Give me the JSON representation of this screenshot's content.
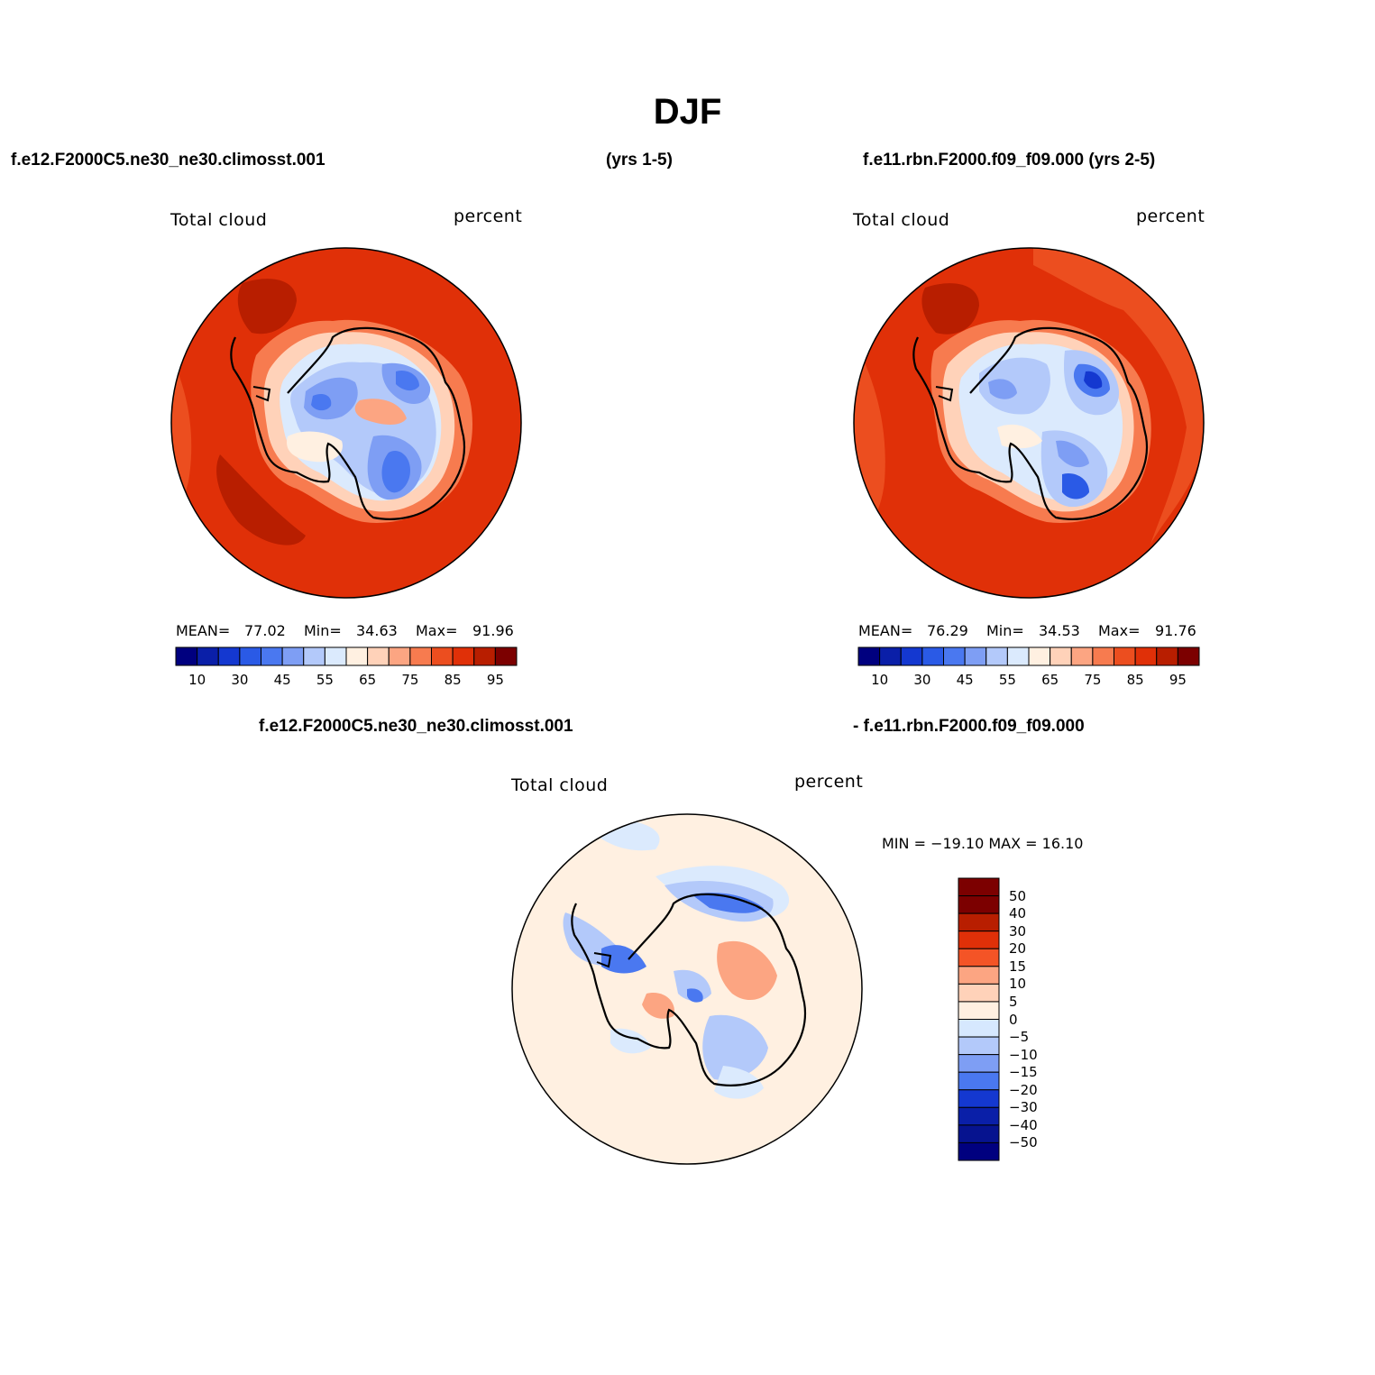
{
  "title": "DJF",
  "header": {
    "left": "f.e12.F2000C5.ne30_ne30.climosst.001",
    "middle": "(yrs 1-5)",
    "right": "f.e11.rbn.F2000.f09_f09.000 (yrs 2-5)"
  },
  "diff_header": {
    "left": "f.e12.F2000C5.ne30_ne30.climosst.001",
    "right": "- f.e11.rbn.F2000.f09_f09.000"
  },
  "panels": [
    {
      "variable": "Total cloud",
      "units": "percent",
      "mean_label": "MEAN=",
      "mean": "77.02",
      "min_label": "Min=",
      "min": "34.63",
      "max_label": "Max=",
      "max": "91.96"
    },
    {
      "variable": "Total cloud",
      "units": "percent",
      "mean_label": "MEAN=",
      "mean": "76.29",
      "min_label": "Min=",
      "min": "34.53",
      "max_label": "Max=",
      "max": "91.76"
    }
  ],
  "diff_panel": {
    "variable": "Total cloud",
    "units": "percent",
    "minmax": "MIN = −19.10 MAX =  16.10"
  },
  "colorbar_abs": {
    "colors": [
      "#00007f",
      "#0a1fa8",
      "#1438d0",
      "#2a5ae6",
      "#4a78f0",
      "#7e9ef4",
      "#b3c9fa",
      "#dbeafd",
      "#fff0e1",
      "#ffd2b9",
      "#fca582",
      "#f77b4f",
      "#ec4e1f",
      "#e03008",
      "#b81e00",
      "#7c0000"
    ],
    "ticks": [
      "10",
      "30",
      "45",
      "55",
      "65",
      "75",
      "85",
      "95"
    ]
  },
  "colorbar_diff": {
    "colors": [
      "#7c0000",
      "#b81e00",
      "#e03008",
      "#f45426",
      "#fca582",
      "#ffd2b9",
      "#fff0e1",
      "#d6e8fe",
      "#b3c9fa",
      "#7e9ef4",
      "#4a78f0",
      "#1438d0",
      "#0a1fa8",
      "#06138f",
      "#00007f"
    ],
    "ticks": [
      "50",
      "40",
      "30",
      "20",
      "15",
      "10",
      "5",
      "0",
      "−5",
      "−10",
      "−15",
      "−20",
      "−30",
      "−40",
      "−50"
    ]
  }
}
